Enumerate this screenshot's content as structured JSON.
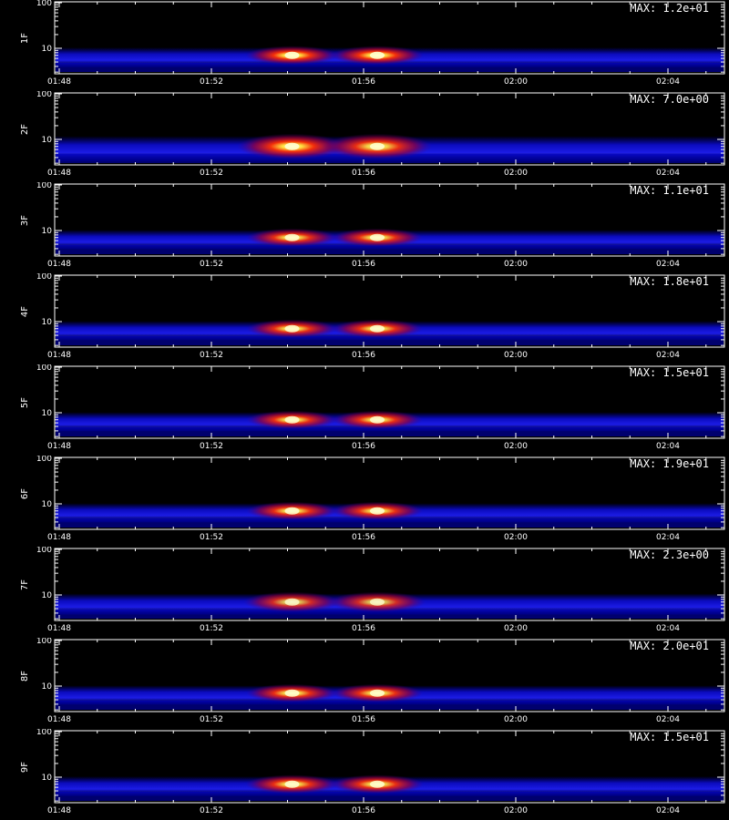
{
  "chart_data": {
    "type": "heatmap",
    "x_ticks": [
      "01:48",
      "01:52",
      "01:56",
      "02:00",
      "02:04"
    ],
    "y_ticks": [
      "100",
      "10"
    ],
    "panels": [
      {
        "name": "1F",
        "max": "MAX: 1.2e+01",
        "bursts": [
          {
            "t": "01:54",
            "i": 1.0
          },
          {
            "t": "01:56",
            "i": 1.0
          }
        ],
        "spread": 0.55
      },
      {
        "name": "2F",
        "max": "MAX: 7.0e+00",
        "bursts": [
          {
            "t": "01:54",
            "i": 1.0
          },
          {
            "t": "01:56",
            "i": 0.95
          }
        ],
        "spread": 1.0
      },
      {
        "name": "3F",
        "max": "MAX: 1.1e+01",
        "bursts": [
          {
            "t": "01:54",
            "i": 0.95
          },
          {
            "t": "01:56",
            "i": 0.95
          }
        ],
        "spread": 0.5
      },
      {
        "name": "4F",
        "max": "MAX: 1.8e+01",
        "bursts": [
          {
            "t": "01:54",
            "i": 0.95
          },
          {
            "t": "01:56",
            "i": 0.95
          }
        ],
        "spread": 0.5
      },
      {
        "name": "5F",
        "max": "MAX: 1.5e+01",
        "bursts": [
          {
            "t": "01:54",
            "i": 0.95
          },
          {
            "t": "01:56",
            "i": 0.95
          }
        ],
        "spread": 0.5
      },
      {
        "name": "6F",
        "max": "MAX: 1.9e+01",
        "bursts": [
          {
            "t": "01:54",
            "i": 0.95
          },
          {
            "t": "01:56",
            "i": 0.95
          }
        ],
        "spread": 0.5
      },
      {
        "name": "7F",
        "max": "MAX: 2.3e+00",
        "bursts": [
          {
            "t": "01:54",
            "i": 0.85
          },
          {
            "t": "01:56",
            "i": 0.85
          }
        ],
        "spread": 0.65
      },
      {
        "name": "8F",
        "max": "MAX: 2.0e+01",
        "bursts": [
          {
            "t": "01:54",
            "i": 0.95
          },
          {
            "t": "01:56",
            "i": 0.95
          }
        ],
        "spread": 0.5
      },
      {
        "name": "9F",
        "max": "MAX: 1.5e+01",
        "bursts": [
          {
            "t": "01:54",
            "i": 0.95
          },
          {
            "t": "01:56",
            "i": 0.95
          }
        ],
        "spread": 0.55
      }
    ],
    "footer": ""
  }
}
